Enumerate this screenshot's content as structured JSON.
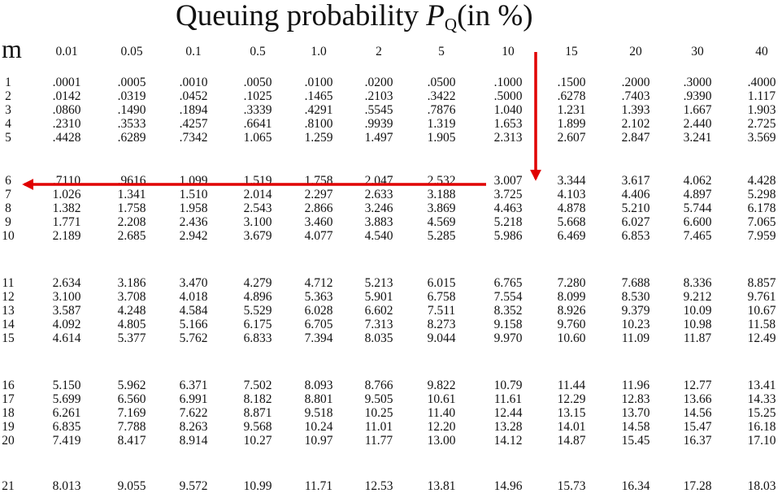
{
  "title": {
    "prefix": "Queuing probability ",
    "symbol": "P",
    "subscript": "Q",
    "suffix": "(in %)"
  },
  "row_header": "m",
  "columns": [
    "0.01",
    "0.05",
    "0.1",
    "0.5",
    "1.0",
    "2",
    "5",
    "10",
    "15",
    "20",
    "30",
    "40"
  ],
  "rows": [
    {
      "m": "1",
      "values": [
        ".0001",
        ".0005",
        ".0010",
        ".0050",
        ".0100",
        ".0200",
        ".0500",
        ".1000",
        ".1500",
        ".2000",
        ".3000",
        ".4000"
      ]
    },
    {
      "m": "2",
      "values": [
        ".0142",
        ".0319",
        ".0452",
        ".1025",
        ".1465",
        ".2103",
        ".3422",
        ".5000",
        ".6278",
        ".7403",
        ".9390",
        "1.117"
      ]
    },
    {
      "m": "3",
      "values": [
        ".0860",
        ".1490",
        ".1894",
        ".3339",
        ".4291",
        ".5545",
        ".7876",
        "1.040",
        "1.231",
        "1.393",
        "1.667",
        "1.903"
      ]
    },
    {
      "m": "4",
      "values": [
        ".2310",
        ".3533",
        ".4257",
        ".6641",
        ".8100",
        ".9939",
        "1.319",
        "1.653",
        "1.899",
        "2.102",
        "2.440",
        "2.725"
      ]
    },
    {
      "m": "5",
      "values": [
        ".4428",
        ".6289",
        ".7342",
        "1.065",
        "1.259",
        "1.497",
        "1.905",
        "2.313",
        "2.607",
        "2.847",
        "3.241",
        "3.569"
      ]
    },
    {
      "m": "6",
      "values": [
        ".7110",
        ".9616",
        "1.099",
        "1.519",
        "1.758",
        "2.047",
        "2.532",
        "3.007",
        "3.344",
        "3.617",
        "4.062",
        "4.428"
      ]
    },
    {
      "m": "7",
      "values": [
        "1.026",
        "1.341",
        "1.510",
        "2.014",
        "2.297",
        "2.633",
        "3.188",
        "3.725",
        "4.103",
        "4.406",
        "4.897",
        "5.298"
      ]
    },
    {
      "m": "8",
      "values": [
        "1.382",
        "1.758",
        "1.958",
        "2.543",
        "2.866",
        "3.246",
        "3.869",
        "4.463",
        "4.878",
        "5.210",
        "5.744",
        "6.178"
      ]
    },
    {
      "m": "9",
      "values": [
        "1.771",
        "2.208",
        "2.436",
        "3.100",
        "3.460",
        "3.883",
        "4.569",
        "5.218",
        "5.668",
        "6.027",
        "6.600",
        "7.065"
      ]
    },
    {
      "m": "10",
      "values": [
        "2.189",
        "2.685",
        "2.942",
        "3.679",
        "4.077",
        "4.540",
        "5.285",
        "5.986",
        "6.469",
        "6.853",
        "7.465",
        "7.959"
      ]
    },
    {
      "m": "11",
      "values": [
        "2.634",
        "3.186",
        "3.470",
        "4.279",
        "4.712",
        "5.213",
        "6.015",
        "6.765",
        "7.280",
        "7.688",
        "8.336",
        "8.857"
      ]
    },
    {
      "m": "12",
      "values": [
        "3.100",
        "3.708",
        "4.018",
        "4.896",
        "5.363",
        "5.901",
        "6.758",
        "7.554",
        "8.099",
        "8.530",
        "9.212",
        "9.761"
      ]
    },
    {
      "m": "13",
      "values": [
        "3.587",
        "4.248",
        "4.584",
        "5.529",
        "6.028",
        "6.602",
        "7.511",
        "8.352",
        "8.926",
        "9.379",
        "10.09",
        "10.67"
      ]
    },
    {
      "m": "14",
      "values": [
        "4.092",
        "4.805",
        "5.166",
        "6.175",
        "6.705",
        "7.313",
        "8.273",
        "9.158",
        "9.760",
        "10.23",
        "10.98",
        "11.58"
      ]
    },
    {
      "m": "15",
      "values": [
        "4.614",
        "5.377",
        "5.762",
        "6.833",
        "7.394",
        "8.035",
        "9.044",
        "9.970",
        "10.60",
        "11.09",
        "11.87",
        "12.49"
      ]
    },
    {
      "m": "16",
      "values": [
        "5.150",
        "5.962",
        "6.371",
        "7.502",
        "8.093",
        "8.766",
        "9.822",
        "10.79",
        "11.44",
        "11.96",
        "12.77",
        "13.41"
      ]
    },
    {
      "m": "17",
      "values": [
        "5.699",
        "6.560",
        "6.991",
        "8.182",
        "8.801",
        "9.505",
        "10.61",
        "11.61",
        "12.29",
        "12.83",
        "13.66",
        "14.33"
      ]
    },
    {
      "m": "18",
      "values": [
        "6.261",
        "7.169",
        "7.622",
        "8.871",
        "9.518",
        "10.25",
        "11.40",
        "12.44",
        "13.15",
        "13.70",
        "14.56",
        "15.25"
      ]
    },
    {
      "m": "19",
      "values": [
        "6.835",
        "7.788",
        "8.263",
        "9.568",
        "10.24",
        "11.01",
        "12.20",
        "13.28",
        "14.01",
        "14.58",
        "15.47",
        "16.18"
      ]
    },
    {
      "m": "20",
      "values": [
        "7.419",
        "8.417",
        "8.914",
        "10.27",
        "10.97",
        "11.77",
        "13.00",
        "14.12",
        "14.87",
        "15.45",
        "16.37",
        "17.10"
      ]
    },
    {
      "m": "21",
      "values": [
        "8.013",
        "9.055",
        "9.572",
        "10.99",
        "11.71",
        "12.53",
        "13.81",
        "14.96",
        "15.73",
        "16.34",
        "17.28",
        "18.03"
      ]
    }
  ],
  "highlight": {
    "column": "10",
    "row": "6",
    "value": "3.007",
    "arrow_color": "#e00000"
  }
}
